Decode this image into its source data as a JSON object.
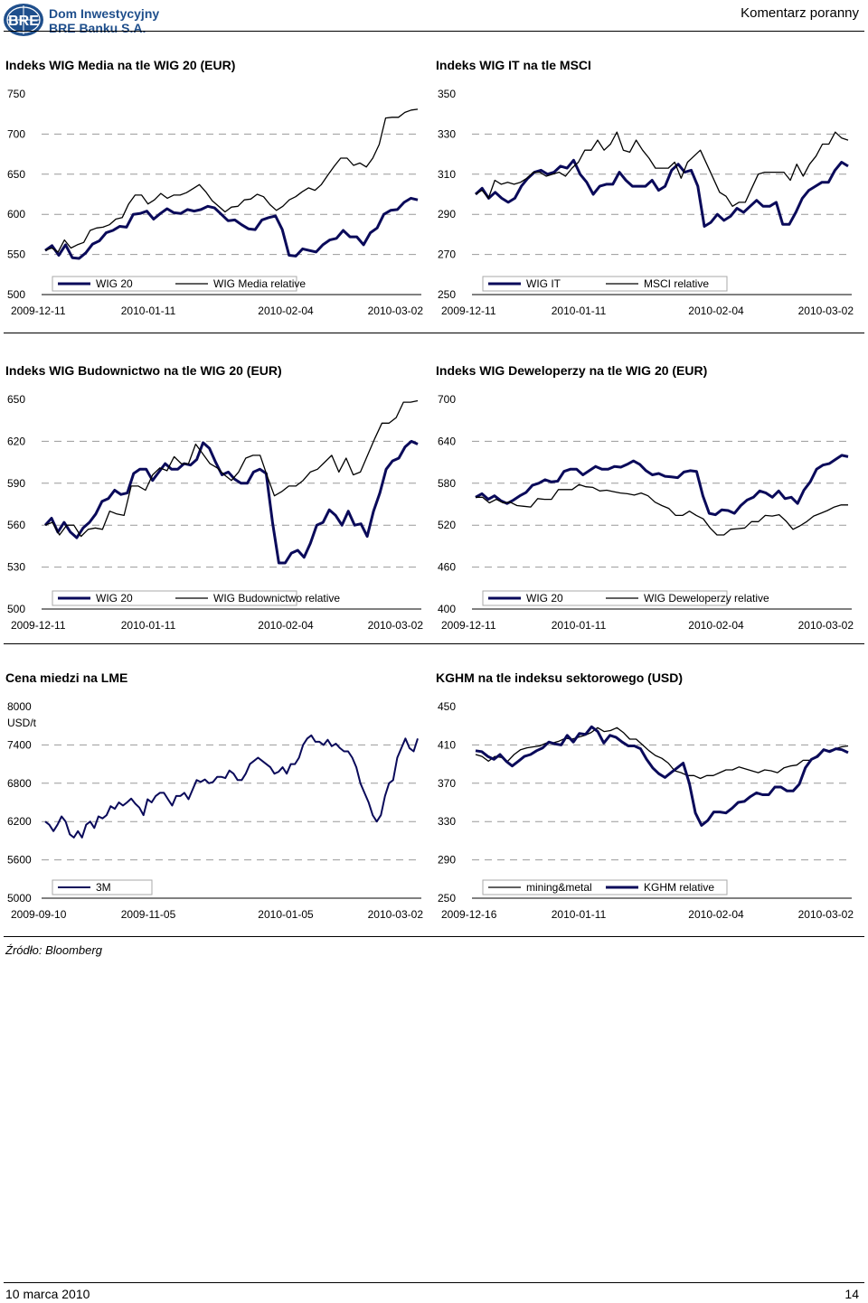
{
  "header": {
    "brand_line1": "Dom Inwestycyjny",
    "brand_line2": "BRE Banku S.A.",
    "logo_text": "BRE",
    "report_type": "Komentarz poranny"
  },
  "footer": {
    "source": "Źródło: Bloomberg",
    "date": "10 marca 2010",
    "page": "14"
  },
  "colors": {
    "navy": "#0a0a5a",
    "black": "#000000",
    "grid": "#999999"
  },
  "chart_data": [
    {
      "id": "wig-media",
      "type": "line",
      "title": "Indeks WIG Media na tle WIG 20 (EUR)",
      "ylim": [
        500,
        750
      ],
      "yticks": [
        "750",
        "700",
        "650",
        "600",
        "550",
        "500"
      ],
      "xticks": [
        "2009-12-11",
        "2010-01-11",
        "2010-02-04",
        "2010-03-02"
      ],
      "legend": [
        "WIG 20",
        "WIG Media relative"
      ],
      "series": [
        {
          "name": "WIG 20",
          "color": "navy",
          "width": 3,
          "values": [
            555,
            561,
            549,
            562,
            546,
            545,
            552,
            563,
            567,
            577,
            580,
            585,
            584,
            600,
            601,
            604,
            594,
            601,
            607,
            602,
            601,
            606,
            604,
            606,
            610,
            608,
            600,
            592,
            593,
            587,
            582,
            581,
            593,
            596,
            598,
            581,
            549,
            548,
            557,
            555,
            553,
            562,
            568,
            570,
            580,
            572,
            572,
            562,
            577,
            583,
            600,
            605,
            606,
            615,
            620,
            618
          ]
        },
        {
          "name": "WIG Media relative",
          "color": "black",
          "width": 1.3,
          "values": [
            555,
            558,
            553,
            568,
            558,
            562,
            565,
            580,
            583,
            584,
            587,
            594,
            596,
            613,
            624,
            624,
            613,
            618,
            626,
            620,
            624,
            624,
            627,
            632,
            637,
            628,
            617,
            610,
            603,
            609,
            610,
            618,
            619,
            625,
            622,
            612,
            605,
            610,
            618,
            622,
            628,
            633,
            630,
            637,
            649,
            660,
            670,
            670,
            661,
            664,
            659,
            670,
            687,
            720,
            721,
            721,
            727,
            730,
            731
          ]
        }
      ]
    },
    {
      "id": "wig-it",
      "type": "line",
      "title": "Indeks WIG IT na tle MSCI",
      "ylim": [
        250,
        350
      ],
      "yticks": [
        "350",
        "330",
        "310",
        "290",
        "270",
        "250"
      ],
      "xticks": [
        "2009-12-11",
        "2010-01-11",
        "2010-02-04",
        "2010-03-02"
      ],
      "legend": [
        "WIG IT",
        "MSCI relative"
      ],
      "series": [
        {
          "name": "WIG IT",
          "color": "navy",
          "width": 3,
          "values": [
            300,
            303,
            298,
            301,
            298,
            296,
            298,
            304,
            308,
            311,
            312,
            310,
            311,
            314,
            313,
            317,
            310,
            306,
            300,
            304,
            305,
            305,
            311,
            307,
            304,
            304,
            304,
            307,
            302,
            304,
            312,
            315,
            311,
            312,
            304,
            284,
            286,
            290,
            287,
            289,
            293,
            291,
            294,
            297,
            294,
            294,
            296,
            285,
            285,
            291,
            298,
            302,
            304,
            306,
            306,
            312,
            316,
            314
          ]
        },
        {
          "name": "MSCI relative",
          "color": "black",
          "width": 1.3,
          "values": [
            300,
            302,
            298,
            307,
            305,
            306,
            305,
            306,
            308,
            311,
            311,
            309,
            310,
            311,
            309,
            313,
            316,
            322,
            322,
            327,
            322,
            325,
            331,
            322,
            321,
            327,
            322,
            318,
            313,
            313,
            313,
            316,
            308,
            316,
            319,
            322,
            315,
            308,
            301,
            299,
            294,
            296,
            296,
            303,
            310,
            311,
            311,
            311,
            311,
            307,
            315,
            309,
            315,
            319,
            325,
            325,
            331,
            328,
            327
          ]
        }
      ]
    },
    {
      "id": "wig-budownictwo",
      "type": "line",
      "title": "Indeks WIG Budownictwo na tle WIG 20 (EUR)",
      "ylim": [
        500,
        650
      ],
      "yticks": [
        "650",
        "620",
        "590",
        "560",
        "530",
        "500"
      ],
      "xticks": [
        "2009-12-11",
        "2010-01-11",
        "2010-02-04",
        "2010-03-02"
      ],
      "legend": [
        "WIG 20",
        "WIG Budownictwo relative"
      ],
      "series": [
        {
          "name": "WIG 20",
          "color": "navy",
          "width": 3,
          "values": [
            560,
            565,
            555,
            562,
            555,
            551,
            558,
            562,
            568,
            577,
            579,
            585,
            582,
            583,
            597,
            600,
            600,
            592,
            598,
            604,
            600,
            600,
            604,
            603,
            607,
            619,
            615,
            605,
            596,
            598,
            593,
            590,
            590,
            598,
            600,
            597,
            562,
            533,
            533,
            540,
            542,
            537,
            547,
            560,
            562,
            571,
            567,
            560,
            570,
            560,
            561,
            552,
            570,
            583,
            600,
            606,
            608,
            616,
            620,
            618
          ]
        },
        {
          "name": "WIG Budownictwo relative",
          "color": "black",
          "width": 1.3,
          "values": [
            560,
            562,
            553,
            560,
            560,
            552,
            557,
            558,
            557,
            570,
            568,
            567,
            588,
            588,
            585,
            596,
            601,
            599,
            609,
            604,
            604,
            618,
            611,
            604,
            601,
            596,
            592,
            598,
            608,
            610,
            610,
            595,
            581,
            584,
            588,
            588,
            592,
            598,
            600,
            605,
            610,
            598,
            608,
            596,
            598,
            610,
            622,
            633,
            633,
            637,
            648,
            648,
            649
          ]
        }
      ]
    },
    {
      "id": "wig-deweloperzy",
      "type": "line",
      "title": "Indeks WIG Deweloperzy na tle WIG 20 (EUR)",
      "ylim": [
        400,
        700
      ],
      "yticks": [
        "700",
        "640",
        "580",
        "520",
        "460",
        "400"
      ],
      "xticks": [
        "2009-12-11",
        "2010-01-11",
        "2010-02-04",
        "2010-03-02"
      ],
      "legend": [
        "WIG 20",
        "WIG Deweloperzy relative"
      ],
      "series": [
        {
          "name": "WIG 20",
          "color": "navy",
          "width": 3,
          "values": [
            560,
            565,
            557,
            562,
            555,
            551,
            556,
            562,
            567,
            577,
            580,
            585,
            582,
            583,
            597,
            600,
            600,
            592,
            598,
            604,
            600,
            600,
            604,
            603,
            607,
            612,
            607,
            598,
            592,
            594,
            590,
            589,
            588,
            596,
            598,
            597,
            562,
            537,
            535,
            542,
            541,
            537,
            548,
            556,
            560,
            569,
            566,
            560,
            569,
            558,
            560,
            551,
            570,
            582,
            600,
            606,
            608,
            614,
            620,
            618
          ]
        },
        {
          "name": "WIG Deweloperzy relative",
          "color": "black",
          "width": 1.3,
          "values": [
            560,
            560,
            552,
            557,
            552,
            553,
            548,
            547,
            546,
            558,
            557,
            557,
            571,
            571,
            571,
            578,
            575,
            574,
            569,
            570,
            568,
            566,
            565,
            563,
            566,
            562,
            553,
            548,
            544,
            534,
            534,
            540,
            534,
            529,
            516,
            506,
            506,
            514,
            515,
            516,
            525,
            525,
            534,
            533,
            535,
            526,
            514,
            519,
            525,
            533,
            537,
            541,
            546,
            549,
            549
          ]
        }
      ]
    },
    {
      "id": "cena-miedzi",
      "type": "line",
      "title": "Cena miedzi na LME",
      "unit": "USD/t",
      "ylim": [
        5000,
        8000
      ],
      "yticks": [
        "8000",
        "7400",
        "6800",
        "6200",
        "5600",
        "5000"
      ],
      "xticks": [
        "2009-09-10",
        "2009-11-05",
        "2010-01-05",
        "2010-03-02"
      ],
      "legend": [
        "3M"
      ],
      "series": [
        {
          "name": "3M",
          "color": "navy",
          "width": 2,
          "values": [
            6200,
            6150,
            6050,
            6150,
            6280,
            6200,
            6000,
            5950,
            6050,
            5950,
            6150,
            6200,
            6100,
            6280,
            6250,
            6300,
            6440,
            6400,
            6500,
            6450,
            6500,
            6560,
            6480,
            6420,
            6300,
            6550,
            6500,
            6600,
            6650,
            6650,
            6550,
            6450,
            6600,
            6600,
            6650,
            6550,
            6700,
            6850,
            6820,
            6860,
            6800,
            6820,
            6900,
            6900,
            6880,
            7000,
            6950,
            6850,
            6850,
            6950,
            7100,
            7150,
            7200,
            7150,
            7100,
            7050,
            6950,
            6980,
            7050,
            6950,
            7100,
            7100,
            7200,
            7400,
            7500,
            7550,
            7450,
            7450,
            7400,
            7480,
            7380,
            7420,
            7350,
            7300,
            7300,
            7200,
            7050,
            6800,
            6650,
            6500,
            6300,
            6200,
            6300,
            6600,
            6800,
            6850,
            7200,
            7350,
            7500,
            7350,
            7300,
            7500
          ]
        }
      ]
    },
    {
      "id": "kghm",
      "type": "line",
      "title": "KGHM na tle indeksu sektorowego (USD)",
      "ylim": [
        250,
        450
      ],
      "yticks": [
        "450",
        "410",
        "370",
        "330",
        "290",
        "250"
      ],
      "xticks": [
        "2009-12-16",
        "2010-01-11",
        "2010-02-04",
        "2010-03-02"
      ],
      "legend": [
        "mining&metal",
        "KGHM relative"
      ],
      "series": [
        {
          "name": "mining&metal",
          "color": "black",
          "width": 1.3,
          "values": [
            400,
            398,
            393,
            398,
            397,
            393,
            400,
            405,
            407,
            408,
            409,
            412,
            412,
            414,
            417,
            416,
            418,
            420,
            423,
            428,
            424,
            425,
            428,
            423,
            416,
            416,
            410,
            404,
            399,
            396,
            391,
            383,
            381,
            378,
            378,
            375,
            378,
            378,
            381,
            384,
            384,
            387,
            385,
            383,
            381,
            384,
            383,
            381,
            386,
            388,
            389,
            394,
            394,
            398,
            404,
            404,
            406,
            408,
            409
          ]
        },
        {
          "name": "KGHM relative",
          "color": "navy",
          "width": 3,
          "values": [
            404,
            403,
            398,
            395,
            400,
            393,
            388,
            393,
            398,
            400,
            404,
            407,
            413,
            411,
            410,
            420,
            413,
            422,
            421,
            429,
            424,
            412,
            420,
            418,
            413,
            409,
            409,
            406,
            395,
            386,
            380,
            376,
            381,
            386,
            391,
            370,
            339,
            326,
            331,
            340,
            340,
            339,
            344,
            350,
            351,
            356,
            360,
            358,
            358,
            366,
            366,
            362,
            362,
            369,
            386,
            395,
            398,
            405,
            403,
            406,
            405,
            402
          ]
        }
      ]
    }
  ]
}
